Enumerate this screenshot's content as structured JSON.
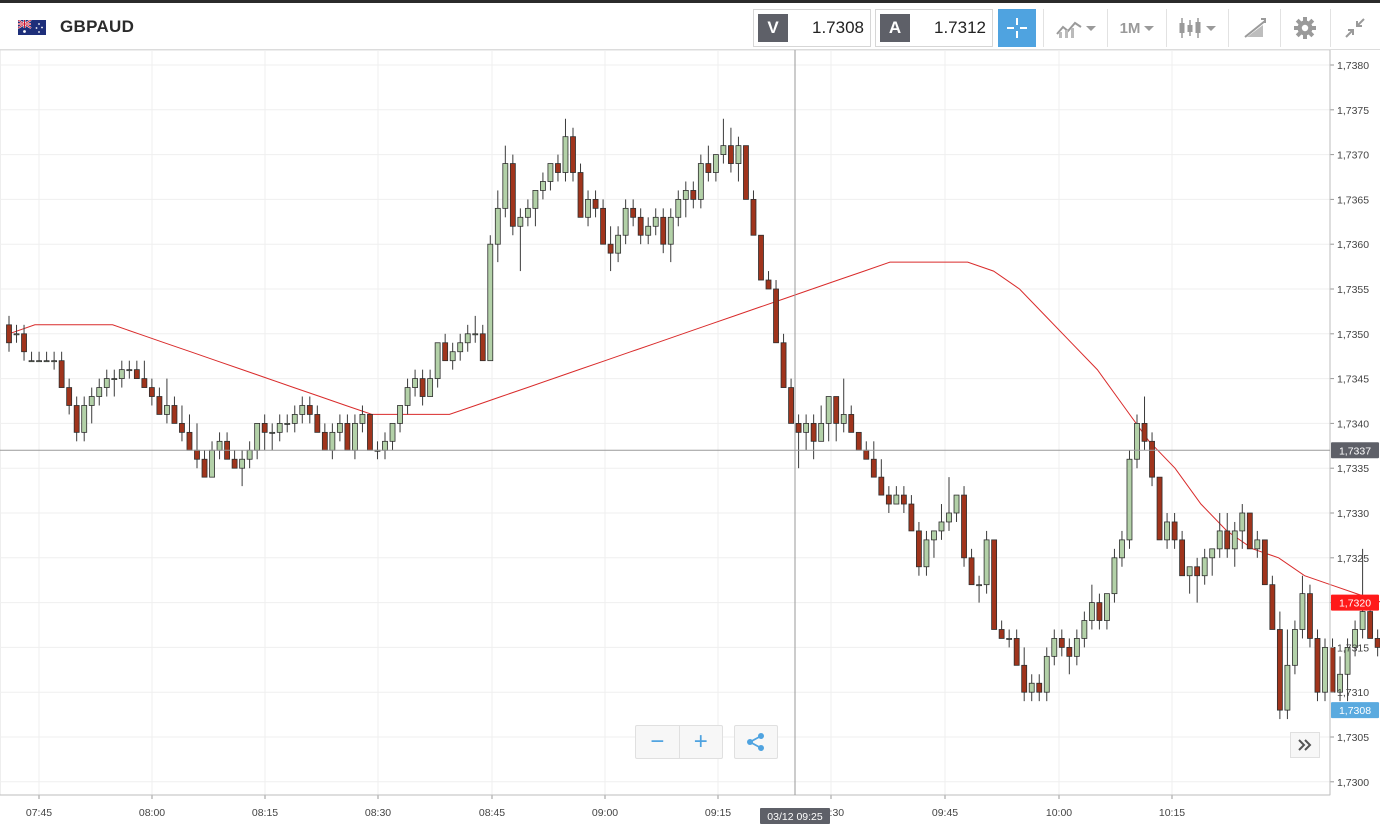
{
  "header": {
    "symbol": "GBPAUD",
    "flag": "gb-au-flag",
    "bid_label": "V",
    "bid_value": "1.7308",
    "ask_label": "A",
    "ask_value": "1.7312",
    "timeframe": "1M",
    "icons": [
      "crosshair-icon",
      "line-chart-icon",
      "candlestick-icon",
      "drawing-icon",
      "gear-icon",
      "collapse-icon"
    ]
  },
  "chart_data": {
    "type": "candlestick",
    "title": "",
    "ylim": [
      1.7298,
      1.7382
    ],
    "y_ticks": [
      "1,7380",
      "1,7375",
      "1,7370",
      "1,7365",
      "1,7360",
      "1,7355",
      "1,7350",
      "1,7345",
      "1,7340",
      "1,7335",
      "1,7330",
      "1,7325",
      "1,7320",
      "1,7315",
      "1,7310",
      "1,7305",
      "1,7300"
    ],
    "x_ticks": [
      "07:45",
      "08:00",
      "08:15",
      "08:30",
      "08:45",
      "09:00",
      "09:15",
      "09:30",
      "09:45",
      "10:00",
      "10:15"
    ],
    "crosshair": {
      "time_label": "03/12 09:25",
      "price_label": "1,7337",
      "price": 1.7337
    },
    "last_price": {
      "label": "1,7308",
      "value": 1.7308,
      "color": "#5aaadf"
    },
    "ma_price": {
      "label": "1,7320",
      "value": 1.732,
      "color": "#ff1a1a"
    },
    "colors": {
      "up": "#b3d1a8",
      "down": "#a0341c",
      "ma": "#d92b2b",
      "grid": "#efefef"
    },
    "candles": [
      [
        1.7351,
        1.7352,
        1.7348,
        1.7349
      ],
      [
        1.735,
        1.7351,
        1.7349,
        1.735
      ],
      [
        1.735,
        1.7351,
        1.7347,
        1.7348
      ],
      [
        1.7347,
        1.7348,
        1.7347,
        1.7347
      ],
      [
        1.7347,
        1.7348,
        1.7347,
        1.7347
      ],
      [
        1.7347,
        1.7348,
        1.7347,
        1.7347
      ],
      [
        1.7347,
        1.7348,
        1.7346,
        1.7347
      ],
      [
        1.7347,
        1.7348,
        1.7344,
        1.7344
      ],
      [
        1.7344,
        1.7345,
        1.7341,
        1.7342
      ],
      [
        1.7342,
        1.7343,
        1.7338,
        1.7339
      ],
      [
        1.7339,
        1.7343,
        1.7338,
        1.7342
      ],
      [
        1.7342,
        1.7344,
        1.734,
        1.7343
      ],
      [
        1.7343,
        1.7345,
        1.7342,
        1.7344
      ],
      [
        1.7344,
        1.7346,
        1.7343,
        1.7345
      ],
      [
        1.7345,
        1.7346,
        1.7343,
        1.7345
      ],
      [
        1.7345,
        1.7347,
        1.7344,
        1.7346
      ],
      [
        1.7346,
        1.7347,
        1.7345,
        1.7346
      ],
      [
        1.7346,
        1.7347,
        1.7345,
        1.7345
      ],
      [
        1.7345,
        1.7347,
        1.7344,
        1.7344
      ],
      [
        1.7344,
        1.7345,
        1.7342,
        1.7343
      ],
      [
        1.7343,
        1.7344,
        1.7341,
        1.7341
      ],
      [
        1.7341,
        1.7345,
        1.734,
        1.7342
      ],
      [
        1.7342,
        1.7343,
        1.734,
        1.734
      ],
      [
        1.734,
        1.7342,
        1.7338,
        1.7339
      ],
      [
        1.7339,
        1.7341,
        1.7337,
        1.7337
      ],
      [
        1.7337,
        1.734,
        1.7335,
        1.7336
      ],
      [
        1.7336,
        1.7337,
        1.7334,
        1.7334
      ],
      [
        1.7334,
        1.7338,
        1.7334,
        1.7337
      ],
      [
        1.7337,
        1.7339,
        1.7336,
        1.7338
      ],
      [
        1.7338,
        1.7339,
        1.7336,
        1.7336
      ],
      [
        1.7336,
        1.7337,
        1.7335,
        1.7335
      ],
      [
        1.7335,
        1.7337,
        1.7333,
        1.7336
      ],
      [
        1.7336,
        1.7338,
        1.7335,
        1.7337
      ],
      [
        1.7337,
        1.734,
        1.7336,
        1.734
      ],
      [
        1.734,
        1.7341,
        1.7337,
        1.7339
      ],
      [
        1.7339,
        1.734,
        1.7337,
        1.7339
      ],
      [
        1.7339,
        1.7341,
        1.7338,
        1.734
      ],
      [
        1.734,
        1.7341,
        1.7339,
        1.734
      ],
      [
        1.734,
        1.7342,
        1.7339,
        1.7341
      ],
      [
        1.7341,
        1.7343,
        1.734,
        1.7342
      ],
      [
        1.7342,
        1.7343,
        1.734,
        1.7341
      ],
      [
        1.7341,
        1.7342,
        1.7339,
        1.7339
      ],
      [
        1.7339,
        1.734,
        1.7337,
        1.7337
      ],
      [
        1.7337,
        1.734,
        1.7336,
        1.7339
      ],
      [
        1.7339,
        1.7341,
        1.7338,
        1.734
      ],
      [
        1.734,
        1.7341,
        1.7337,
        1.7337
      ],
      [
        1.7337,
        1.7341,
        1.7336,
        1.734
      ],
      [
        1.734,
        1.7342,
        1.7339,
        1.7341
      ],
      [
        1.7341,
        1.7341,
        1.7337,
        1.7337
      ],
      [
        1.7337,
        1.7338,
        1.7336,
        1.7337
      ],
      [
        1.7337,
        1.7339,
        1.7336,
        1.7338
      ],
      [
        1.7338,
        1.734,
        1.7337,
        1.734
      ],
      [
        1.734,
        1.7342,
        1.7339,
        1.7342
      ],
      [
        1.7342,
        1.7345,
        1.7341,
        1.7344
      ],
      [
        1.7344,
        1.7346,
        1.7343,
        1.7345
      ],
      [
        1.7345,
        1.7346,
        1.7342,
        1.7343
      ],
      [
        1.7343,
        1.7346,
        1.7343,
        1.7345
      ],
      [
        1.7345,
        1.7349,
        1.7344,
        1.7349
      ],
      [
        1.7349,
        1.735,
        1.7347,
        1.7347
      ],
      [
        1.7347,
        1.7349,
        1.7346,
        1.7348
      ],
      [
        1.7348,
        1.735,
        1.7347,
        1.7349
      ],
      [
        1.7349,
        1.7351,
        1.7348,
        1.735
      ],
      [
        1.735,
        1.7352,
        1.7349,
        1.735
      ],
      [
        1.735,
        1.7351,
        1.7347,
        1.7347
      ],
      [
        1.7347,
        1.7361,
        1.7347,
        1.736
      ],
      [
        1.736,
        1.7366,
        1.7358,
        1.7364
      ],
      [
        1.7364,
        1.7371,
        1.7363,
        1.7369
      ],
      [
        1.7369,
        1.737,
        1.7361,
        1.7362
      ],
      [
        1.7362,
        1.7364,
        1.7357,
        1.7363
      ],
      [
        1.7363,
        1.7365,
        1.7362,
        1.7364
      ],
      [
        1.7364,
        1.7366,
        1.7362,
        1.7366
      ],
      [
        1.7366,
        1.7368,
        1.7365,
        1.7367
      ],
      [
        1.7367,
        1.7369,
        1.7366,
        1.7369
      ],
      [
        1.7369,
        1.737,
        1.7367,
        1.7368
      ],
      [
        1.7368,
        1.7374,
        1.7367,
        1.7372
      ],
      [
        1.7372,
        1.7373,
        1.7367,
        1.7368
      ],
      [
        1.7368,
        1.7369,
        1.7363,
        1.7363
      ],
      [
        1.7363,
        1.7366,
        1.7362,
        1.7365
      ],
      [
        1.7365,
        1.7366,
        1.7363,
        1.7364
      ],
      [
        1.7364,
        1.7365,
        1.736,
        1.736
      ],
      [
        1.736,
        1.7362,
        1.7357,
        1.7359
      ],
      [
        1.7359,
        1.7362,
        1.7358,
        1.7361
      ],
      [
        1.7361,
        1.7365,
        1.736,
        1.7364
      ],
      [
        1.7364,
        1.7365,
        1.7362,
        1.7363
      ],
      [
        1.7363,
        1.7364,
        1.736,
        1.7361
      ],
      [
        1.7361,
        1.7363,
        1.736,
        1.7362
      ],
      [
        1.7362,
        1.7364,
        1.7361,
        1.7363
      ],
      [
        1.7363,
        1.7364,
        1.7359,
        1.736
      ],
      [
        1.736,
        1.7364,
        1.7358,
        1.7363
      ],
      [
        1.7363,
        1.7366,
        1.7362,
        1.7365
      ],
      [
        1.7365,
        1.7367,
        1.7363,
        1.7366
      ],
      [
        1.7366,
        1.7367,
        1.7364,
        1.7365
      ],
      [
        1.7365,
        1.737,
        1.7364,
        1.7369
      ],
      [
        1.7369,
        1.7371,
        1.7367,
        1.7368
      ],
      [
        1.7368,
        1.737,
        1.7367,
        1.737
      ],
      [
        1.737,
        1.7374,
        1.7369,
        1.7371
      ],
      [
        1.7371,
        1.7373,
        1.7368,
        1.7369
      ],
      [
        1.7369,
        1.7372,
        1.7367,
        1.7371
      ],
      [
        1.7371,
        1.7371,
        1.7365,
        1.7365
      ],
      [
        1.7365,
        1.7366,
        1.7361,
        1.7361
      ],
      [
        1.7361,
        1.7361,
        1.7356,
        1.7356
      ],
      [
        1.7356,
        1.7357,
        1.7355,
        1.7355
      ],
      [
        1.7355,
        1.7356,
        1.7349,
        1.7349
      ],
      [
        1.7349,
        1.735,
        1.7344,
        1.7344
      ],
      [
        1.7344,
        1.7345,
        1.734,
        1.734
      ],
      [
        1.734,
        1.7341,
        1.7335,
        1.7339
      ],
      [
        1.7339,
        1.7341,
        1.7337,
        1.734
      ],
      [
        1.734,
        1.7341,
        1.7336,
        1.7338
      ],
      [
        1.7338,
        1.7342,
        1.7338,
        1.734
      ],
      [
        1.734,
        1.7343,
        1.7338,
        1.7343
      ],
      [
        1.7343,
        1.7343,
        1.7338,
        1.734
      ],
      [
        1.734,
        1.7345,
        1.7339,
        1.7341
      ],
      [
        1.7341,
        1.7342,
        1.7339,
        1.7339
      ],
      [
        1.7339,
        1.7339,
        1.7337,
        1.7337
      ],
      [
        1.7337,
        1.7338,
        1.7336,
        1.7336
      ],
      [
        1.7336,
        1.7338,
        1.7334,
        1.7334
      ],
      [
        1.7334,
        1.7336,
        1.7332,
        1.7332
      ],
      [
        1.7332,
        1.7333,
        1.733,
        1.7331
      ],
      [
        1.7331,
        1.7333,
        1.7331,
        1.7332
      ],
      [
        1.7332,
        1.7333,
        1.733,
        1.7331
      ],
      [
        1.7331,
        1.7332,
        1.7328,
        1.7328
      ],
      [
        1.7328,
        1.7329,
        1.7323,
        1.7324
      ],
      [
        1.7324,
        1.7328,
        1.7323,
        1.7327
      ],
      [
        1.7327,
        1.7328,
        1.7325,
        1.7328
      ],
      [
        1.7328,
        1.7331,
        1.7327,
        1.7329
      ],
      [
        1.7329,
        1.7334,
        1.7328,
        1.733
      ],
      [
        1.733,
        1.7332,
        1.7329,
        1.7332
      ],
      [
        1.7332,
        1.7333,
        1.7324,
        1.7325
      ],
      [
        1.7325,
        1.7326,
        1.7322,
        1.7322
      ],
      [
        1.7322,
        1.7323,
        1.732,
        1.7322
      ],
      [
        1.7322,
        1.7328,
        1.7321,
        1.7327
      ],
      [
        1.7327,
        1.7327,
        1.7317,
        1.7317
      ],
      [
        1.7317,
        1.7318,
        1.7316,
        1.7316
      ],
      [
        1.7316,
        1.7317,
        1.7315,
        1.7316
      ],
      [
        1.7316,
        1.7317,
        1.7313,
        1.7313
      ],
      [
        1.7313,
        1.7315,
        1.7309,
        1.731
      ],
      [
        1.731,
        1.7312,
        1.7309,
        1.7311
      ],
      [
        1.7311,
        1.7312,
        1.7309,
        1.731
      ],
      [
        1.731,
        1.7315,
        1.7309,
        1.7314
      ],
      [
        1.7314,
        1.7317,
        1.7313,
        1.7316
      ],
      [
        1.7316,
        1.7317,
        1.7314,
        1.7315
      ],
      [
        1.7315,
        1.7316,
        1.7312,
        1.7314
      ],
      [
        1.7314,
        1.7317,
        1.7313,
        1.7316
      ],
      [
        1.7316,
        1.7319,
        1.7315,
        1.7318
      ],
      [
        1.7318,
        1.7322,
        1.7317,
        1.732
      ],
      [
        1.732,
        1.7321,
        1.7317,
        1.7318
      ],
      [
        1.7318,
        1.7321,
        1.7317,
        1.7321
      ],
      [
        1.7321,
        1.7326,
        1.732,
        1.7325
      ],
      [
        1.7325,
        1.7328,
        1.7324,
        1.7327
      ],
      [
        1.7327,
        1.7337,
        1.7326,
        1.7336
      ],
      [
        1.7336,
        1.7341,
        1.7335,
        1.734
      ],
      [
        1.734,
        1.7343,
        1.7337,
        1.7338
      ],
      [
        1.7338,
        1.7339,
        1.7333,
        1.7334
      ],
      [
        1.7334,
        1.7334,
        1.7327,
        1.7327
      ],
      [
        1.7327,
        1.733,
        1.7326,
        1.7329
      ],
      [
        1.7329,
        1.733,
        1.7326,
        1.7327
      ],
      [
        1.7327,
        1.7328,
        1.7323,
        1.7323
      ],
      [
        1.7323,
        1.7324,
        1.7321,
        1.7324
      ],
      [
        1.7324,
        1.7325,
        1.732,
        1.7323
      ],
      [
        1.7323,
        1.7326,
        1.7322,
        1.7325
      ],
      [
        1.7325,
        1.7326,
        1.7323,
        1.7326
      ],
      [
        1.7326,
        1.733,
        1.7325,
        1.7328
      ],
      [
        1.7328,
        1.733,
        1.7325,
        1.7326
      ],
      [
        1.7326,
        1.7329,
        1.7324,
        1.7328
      ],
      [
        1.7328,
        1.7331,
        1.7326,
        1.733
      ],
      [
        1.733,
        1.733,
        1.7326,
        1.7326
      ],
      [
        1.7326,
        1.7328,
        1.7325,
        1.7327
      ],
      [
        1.7327,
        1.7327,
        1.7322,
        1.7322
      ],
      [
        1.7322,
        1.7323,
        1.7317,
        1.7317
      ],
      [
        1.7317,
        1.7319,
        1.7307,
        1.7308
      ],
      [
        1.7308,
        1.7317,
        1.7307,
        1.7313
      ],
      [
        1.7313,
        1.7318,
        1.7312,
        1.7317
      ],
      [
        1.7317,
        1.7323,
        1.7316,
        1.7321
      ],
      [
        1.7321,
        1.7322,
        1.7315,
        1.7316
      ],
      [
        1.7316,
        1.7317,
        1.7309,
        1.731
      ],
      [
        1.731,
        1.7316,
        1.7309,
        1.7315
      ],
      [
        1.7315,
        1.7316,
        1.731,
        1.731
      ],
      [
        1.731,
        1.7314,
        1.7309,
        1.7312
      ],
      [
        1.7312,
        1.7316,
        1.7309,
        1.7315
      ],
      [
        1.7315,
        1.7318,
        1.7314,
        1.7317
      ],
      [
        1.7317,
        1.7326,
        1.7316,
        1.7319
      ],
      [
        1.7319,
        1.732,
        1.7316,
        1.7316
      ],
      [
        1.7316,
        1.7317,
        1.7314,
        1.7315
      ],
      [
        1.7315,
        1.7316,
        1.7313,
        1.7313
      ],
      [
        1.7313,
        1.7314,
        1.7309,
        1.7309
      ],
      [
        1.7309,
        1.7311,
        1.7306,
        1.7308
      ]
    ],
    "ma": [
      1.735,
      1.7351,
      1.7351,
      1.7351,
      1.7351,
      1.735,
      1.7349,
      1.7348,
      1.7347,
      1.7346,
      1.7345,
      1.7344,
      1.7343,
      1.7342,
      1.7341,
      1.7341,
      1.7341,
      1.7341,
      1.7342,
      1.7343,
      1.7344,
      1.7345,
      1.7346,
      1.7347,
      1.7348,
      1.7349,
      1.735,
      1.7351,
      1.7352,
      1.7353,
      1.7354,
      1.7355,
      1.7356,
      1.7357,
      1.7358,
      1.7358,
      1.7358,
      1.7358,
      1.7357,
      1.7355,
      1.7352,
      1.7349,
      1.7346,
      1.7342,
      1.7338,
      1.7335,
      1.7331,
      1.7328,
      1.7326,
      1.7325,
      1.7323,
      1.7322,
      1.7321,
      1.732,
      1.732
    ]
  },
  "controls": {
    "zoom_out": "−",
    "zoom_in": "+",
    "share": "share-icon",
    "scroll": "double-chevron-right-icon"
  }
}
